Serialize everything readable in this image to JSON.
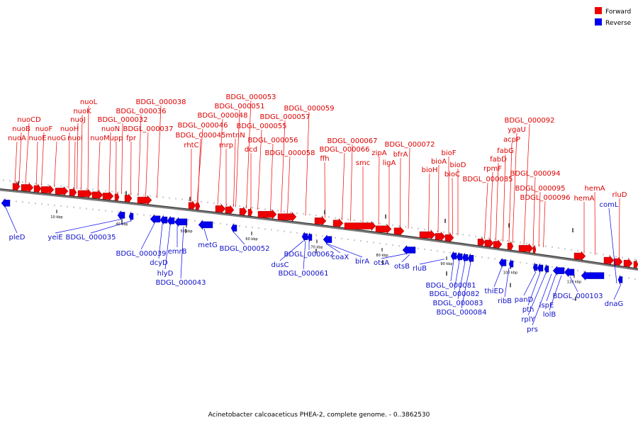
{
  "legend": {
    "forward_label": "Forward",
    "reverse_label": "Reverse",
    "forward_color": "#ee0000",
    "reverse_color": "#0000ee"
  },
  "caption": "Acinetobacter calcoaceticus PHEA-2, complete genome. - 0..3862530",
  "ticks": [
    "10 kbp",
    "40 kbp",
    "50 kbp",
    "60 kbp",
    "70 kbp",
    "80 kbp",
    "90 kbp",
    "100 kbp",
    "110 kbp"
  ],
  "forward_genes": [
    {
      "name": "nuoA",
      "pos": 1.5
    },
    {
      "name": "nuoB",
      "pos": 2.8
    },
    {
      "name": "nuoCD",
      "pos": 4.2
    },
    {
      "name": "nuoE",
      "pos": 5.9
    },
    {
      "name": "nuoF",
      "pos": 7.0
    },
    {
      "name": "nuoG",
      "pos": 8.6
    },
    {
      "name": "nuoH",
      "pos": 10.2
    },
    {
      "name": "nuoI",
      "pos": 11.0
    },
    {
      "name": "nuoJ",
      "pos": 12.0
    },
    {
      "name": "nuoK",
      "pos": 12.5
    },
    {
      "name": "nuoL",
      "pos": 13.6
    },
    {
      "name": "nuoM",
      "pos": 15.0
    },
    {
      "name": "nuoN",
      "pos": 16.3
    },
    {
      "name": "upp",
      "pos": 17.5
    },
    {
      "name": "BDGL_000032",
      "pos": 18.2
    },
    {
      "name": "fpr",
      "pos": 19.2
    },
    {
      "name": "BDGL_000036",
      "pos": 20.0
    },
    {
      "name": "BDGL_000037",
      "pos": 21.0
    },
    {
      "name": "BDGL_000038",
      "pos": 22.3
    },
    {
      "name": "rhtC",
      "pos": 27.6
    },
    {
      "name": "BDGL_000045",
      "pos": 28.2
    },
    {
      "name": "BDGL_000046",
      "pos": 31.5
    },
    {
      "name": "mrp",
      "pos": 32.0
    },
    {
      "name": "BDGL_000048",
      "pos": 33.0
    },
    {
      "name": "mtnN",
      "pos": 34.5
    },
    {
      "name": "BDGL_000051",
      "pos": 35.3
    },
    {
      "name": "BDGL_000053",
      "pos": 36.2
    },
    {
      "name": "dcd",
      "pos": 36.6
    },
    {
      "name": "BDGL_000055",
      "pos": 37.5
    },
    {
      "name": "BDGL_000056",
      "pos": 39.8
    },
    {
      "name": "BDGL_000057",
      "pos": 41.8
    },
    {
      "name": "BDGL_000058",
      "pos": 42.8
    },
    {
      "name": "BDGL_000059",
      "pos": 43.9
    },
    {
      "name": "ffh",
      "pos": 46.9
    },
    {
      "name": "BDGL_000066",
      "pos": 49.6
    },
    {
      "name": "BDGL_000067",
      "pos": 50.2
    },
    {
      "name": "smc",
      "pos": 53.0
    },
    {
      "name": "zipA",
      "pos": 55.2
    },
    {
      "name": "ligA",
      "pos": 56.2
    },
    {
      "name": "bfrA",
      "pos": 57.6
    },
    {
      "name": "BDGL_000072",
      "pos": 59.2
    },
    {
      "name": "bioH",
      "pos": 62.2
    },
    {
      "name": "bioA",
      "pos": 63.8
    },
    {
      "name": "bioF",
      "pos": 64.7
    },
    {
      "name": "bioC",
      "pos": 65.5
    },
    {
      "name": "bioD",
      "pos": 66.3
    },
    {
      "name": "BDGL_000085",
      "pos": 70.3
    },
    {
      "name": "rpmF",
      "pos": 71.2
    },
    {
      "name": "fabD",
      "pos": 71.8
    },
    {
      "name": "fabG",
      "pos": 72.6
    },
    {
      "name": "acpP",
      "pos": 73.4
    },
    {
      "name": "ygaU",
      "pos": 74.5
    },
    {
      "name": "BDGL_000092",
      "pos": 75.5
    },
    {
      "name": "BDGL_000094",
      "pos": 77.6
    },
    {
      "name": "BDGL_000095",
      "pos": 78.2
    },
    {
      "name": "BDGL_000096",
      "pos": 78.7
    },
    {
      "name": "hemA",
      "pos": 85.1
    },
    {
      "name": "hemA",
      "pos": 86.1
    },
    {
      "name": "rluD",
      "pos": 89.4
    }
  ],
  "reverse_genes": [
    {
      "name": "pleD",
      "pos": 0.8
    },
    {
      "name": "yeiE",
      "pos": 17.6
    },
    {
      "name": "BDGL_000035",
      "pos": 19.1
    },
    {
      "name": "BDGL_000039",
      "pos": 22.7
    },
    {
      "name": "dcyD",
      "pos": 23.9
    },
    {
      "name": "hlyD",
      "pos": 25.1
    },
    {
      "name": "emrB",
      "pos": 26.2
    },
    {
      "name": "BDGL_000043",
      "pos": 27.1
    },
    {
      "name": "metG",
      "pos": 30.2
    },
    {
      "name": "BDGL_000052",
      "pos": 34.4
    },
    {
      "name": "dusC",
      "pos": 44.4
    },
    {
      "name": "BDGL_000061",
      "pos": 44.9
    },
    {
      "name": "BDGL_000062",
      "pos": 45.6
    },
    {
      "name": "coaX",
      "pos": 47.5
    },
    {
      "name": "birA",
      "pos": 48.0
    },
    {
      "name": "otsA",
      "pos": 57.2
    },
    {
      "name": "otsB",
      "pos": 59.7
    },
    {
      "name": "rluB",
      "pos": 62.5
    },
    {
      "name": "BDGL_000081",
      "pos": 66.2
    },
    {
      "name": "BDGL_000082",
      "pos": 66.9
    },
    {
      "name": "BDGL_000083",
      "pos": 67.6
    },
    {
      "name": "BDGL_000084",
      "pos": 68.9
    },
    {
      "name": "thiED",
      "pos": 73.2
    },
    {
      "name": "ribB",
      "pos": 74.3
    },
    {
      "name": "panD",
      "pos": 77.9
    },
    {
      "name": "pth",
      "pos": 78.5
    },
    {
      "name": "rplY",
      "pos": 79.1
    },
    {
      "name": "prs",
      "pos": 79.7
    },
    {
      "name": "ispE",
      "pos": 80.7
    },
    {
      "name": "lolB",
      "pos": 81.4
    },
    {
      "name": "BDGL_000103",
      "pos": 82.4
    },
    {
      "name": "comL",
      "pos": 87.6
    },
    {
      "name": "dnaG",
      "pos": 91.4
    }
  ]
}
